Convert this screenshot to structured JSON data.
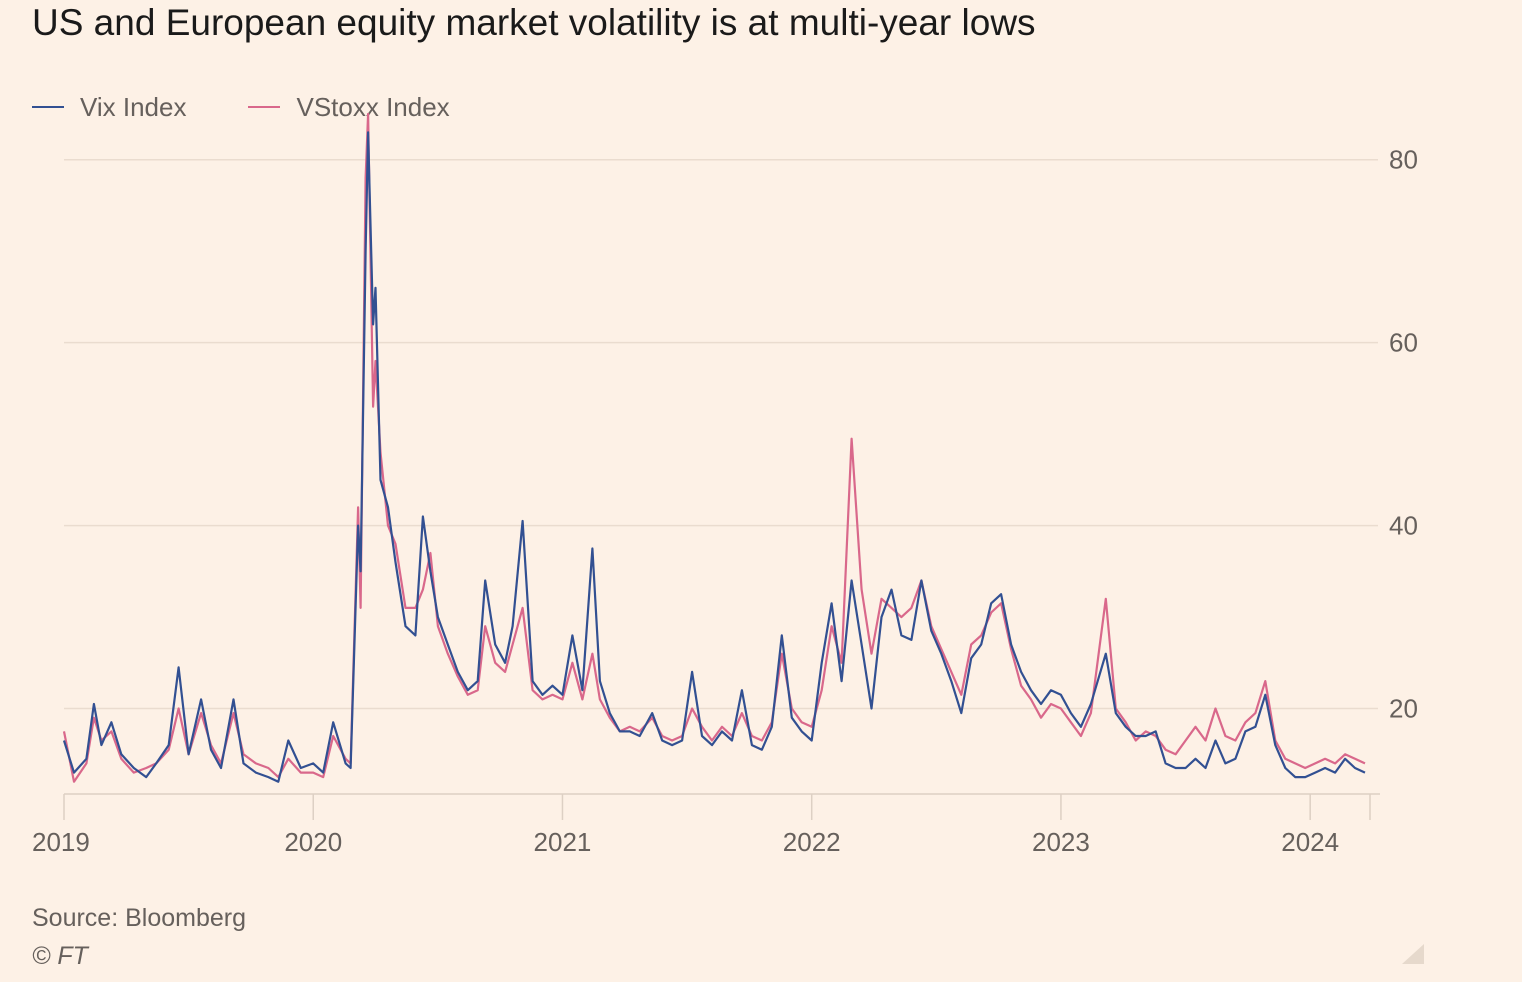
{
  "title": "US and European equity market volatility is at multi-year lows",
  "legend": [
    {
      "label": "Vix Index",
      "color": "#325092"
    },
    {
      "label": "VStoxx Index",
      "color": "#d9688b"
    }
  ],
  "source": "Source: Bloomberg",
  "credit": "© FT",
  "chart_data": {
    "type": "line",
    "title": "US and European equity market volatility is at multi-year lows",
    "xlabel": "",
    "ylabel": "",
    "xlim": [
      2019.0,
      2024.24
    ],
    "ylim": [
      10,
      85
    ],
    "x_ticks": [
      2019,
      2020,
      2021,
      2022,
      2023,
      2024
    ],
    "x_tick_labels": [
      "2019",
      "2020",
      "2021",
      "2022",
      "2023",
      "2024"
    ],
    "y_ticks": [
      20,
      40,
      60,
      80
    ],
    "y_tick_labels": [
      "20",
      "40",
      "60",
      "80"
    ],
    "grid": true,
    "legend_position": "top-left",
    "y_axis_side": "right",
    "series": [
      {
        "name": "Vix Index",
        "color": "#325092",
        "points": [
          [
            2019.0,
            16.5
          ],
          [
            2019.04,
            13.0
          ],
          [
            2019.09,
            14.5
          ],
          [
            2019.12,
            20.5
          ],
          [
            2019.15,
            16.0
          ],
          [
            2019.19,
            18.5
          ],
          [
            2019.23,
            15.0
          ],
          [
            2019.28,
            13.5
          ],
          [
            2019.33,
            12.5
          ],
          [
            2019.37,
            14.0
          ],
          [
            2019.42,
            16.0
          ],
          [
            2019.46,
            24.5
          ],
          [
            2019.5,
            15.0
          ],
          [
            2019.55,
            21.0
          ],
          [
            2019.59,
            15.5
          ],
          [
            2019.63,
            13.5
          ],
          [
            2019.68,
            21.0
          ],
          [
            2019.72,
            14.0
          ],
          [
            2019.77,
            13.0
          ],
          [
            2019.82,
            12.5
          ],
          [
            2019.86,
            12.0
          ],
          [
            2019.9,
            16.5
          ],
          [
            2019.95,
            13.5
          ],
          [
            2020.0,
            14.0
          ],
          [
            2020.04,
            13.0
          ],
          [
            2020.08,
            18.5
          ],
          [
            2020.13,
            14.0
          ],
          [
            2020.15,
            13.5
          ],
          [
            2020.18,
            40.0
          ],
          [
            2020.19,
            35.0
          ],
          [
            2020.21,
            70.0
          ],
          [
            2020.22,
            83.0
          ],
          [
            2020.24,
            62.0
          ],
          [
            2020.25,
            66.0
          ],
          [
            2020.27,
            45.0
          ],
          [
            2020.3,
            42.0
          ],
          [
            2020.33,
            36.0
          ],
          [
            2020.37,
            29.0
          ],
          [
            2020.41,
            28.0
          ],
          [
            2020.44,
            41.0
          ],
          [
            2020.47,
            35.0
          ],
          [
            2020.5,
            30.0
          ],
          [
            2020.54,
            27.0
          ],
          [
            2020.58,
            24.0
          ],
          [
            2020.62,
            22.0
          ],
          [
            2020.66,
            23.0
          ],
          [
            2020.69,
            34.0
          ],
          [
            2020.73,
            27.0
          ],
          [
            2020.77,
            25.0
          ],
          [
            2020.8,
            29.0
          ],
          [
            2020.84,
            40.5
          ],
          [
            2020.88,
            23.0
          ],
          [
            2020.92,
            21.5
          ],
          [
            2020.96,
            22.5
          ],
          [
            2021.0,
            21.5
          ],
          [
            2021.04,
            28.0
          ],
          [
            2021.08,
            22.0
          ],
          [
            2021.12,
            37.5
          ],
          [
            2021.15,
            23.0
          ],
          [
            2021.19,
            19.5
          ],
          [
            2021.23,
            17.5
          ],
          [
            2021.27,
            17.5
          ],
          [
            2021.31,
            17.0
          ],
          [
            2021.36,
            19.5
          ],
          [
            2021.4,
            16.5
          ],
          [
            2021.44,
            16.0
          ],
          [
            2021.48,
            16.5
          ],
          [
            2021.52,
            24.0
          ],
          [
            2021.56,
            17.0
          ],
          [
            2021.6,
            16.0
          ],
          [
            2021.64,
            17.5
          ],
          [
            2021.68,
            16.5
          ],
          [
            2021.72,
            22.0
          ],
          [
            2021.76,
            16.0
          ],
          [
            2021.8,
            15.5
          ],
          [
            2021.84,
            18.0
          ],
          [
            2021.88,
            28.0
          ],
          [
            2021.92,
            19.0
          ],
          [
            2021.96,
            17.5
          ],
          [
            2022.0,
            16.5
          ],
          [
            2022.04,
            25.0
          ],
          [
            2022.08,
            31.5
          ],
          [
            2022.12,
            23.0
          ],
          [
            2022.16,
            34.0
          ],
          [
            2022.2,
            27.0
          ],
          [
            2022.24,
            20.0
          ],
          [
            2022.28,
            30.0
          ],
          [
            2022.32,
            33.0
          ],
          [
            2022.36,
            28.0
          ],
          [
            2022.4,
            27.5
          ],
          [
            2022.44,
            34.0
          ],
          [
            2022.48,
            28.5
          ],
          [
            2022.52,
            26.0
          ],
          [
            2022.56,
            23.0
          ],
          [
            2022.6,
            19.5
          ],
          [
            2022.64,
            25.5
          ],
          [
            2022.68,
            27.0
          ],
          [
            2022.72,
            31.5
          ],
          [
            2022.76,
            32.5
          ],
          [
            2022.8,
            27.0
          ],
          [
            2022.84,
            24.0
          ],
          [
            2022.88,
            22.0
          ],
          [
            2022.92,
            20.5
          ],
          [
            2022.96,
            22.0
          ],
          [
            2023.0,
            21.5
          ],
          [
            2023.04,
            19.5
          ],
          [
            2023.08,
            18.0
          ],
          [
            2023.12,
            20.5
          ],
          [
            2023.18,
            26.0
          ],
          [
            2023.22,
            19.5
          ],
          [
            2023.26,
            18.0
          ],
          [
            2023.3,
            17.0
          ],
          [
            2023.34,
            17.0
          ],
          [
            2023.38,
            17.5
          ],
          [
            2023.42,
            14.0
          ],
          [
            2023.46,
            13.5
          ],
          [
            2023.5,
            13.5
          ],
          [
            2023.54,
            14.5
          ],
          [
            2023.58,
            13.5
          ],
          [
            2023.62,
            16.5
          ],
          [
            2023.66,
            14.0
          ],
          [
            2023.7,
            14.5
          ],
          [
            2023.74,
            17.5
          ],
          [
            2023.78,
            18.0
          ],
          [
            2023.82,
            21.5
          ],
          [
            2023.86,
            16.0
          ],
          [
            2023.9,
            13.5
          ],
          [
            2023.94,
            12.5
          ],
          [
            2023.98,
            12.5
          ],
          [
            2024.02,
            13.0
          ],
          [
            2024.06,
            13.5
          ],
          [
            2024.1,
            13.0
          ],
          [
            2024.14,
            14.5
          ],
          [
            2024.18,
            13.5
          ],
          [
            2024.22,
            13.0
          ]
        ]
      },
      {
        "name": "VStoxx Index",
        "color": "#d9688b",
        "points": [
          [
            2019.0,
            17.5
          ],
          [
            2019.04,
            12.0
          ],
          [
            2019.09,
            14.0
          ],
          [
            2019.12,
            19.0
          ],
          [
            2019.15,
            16.5
          ],
          [
            2019.19,
            17.5
          ],
          [
            2019.23,
            14.5
          ],
          [
            2019.28,
            13.0
          ],
          [
            2019.33,
            13.5
          ],
          [
            2019.37,
            14.0
          ],
          [
            2019.42,
            15.5
          ],
          [
            2019.46,
            20.0
          ],
          [
            2019.5,
            15.0
          ],
          [
            2019.55,
            19.5
          ],
          [
            2019.59,
            16.0
          ],
          [
            2019.63,
            14.0
          ],
          [
            2019.68,
            19.5
          ],
          [
            2019.72,
            15.0
          ],
          [
            2019.77,
            14.0
          ],
          [
            2019.82,
            13.5
          ],
          [
            2019.86,
            12.5
          ],
          [
            2019.9,
            14.5
          ],
          [
            2019.95,
            13.0
          ],
          [
            2020.0,
            13.0
          ],
          [
            2020.04,
            12.5
          ],
          [
            2020.08,
            17.0
          ],
          [
            2020.13,
            14.5
          ],
          [
            2020.15,
            14.0
          ],
          [
            2020.18,
            42.0
          ],
          [
            2020.19,
            31.0
          ],
          [
            2020.21,
            78.0
          ],
          [
            2020.22,
            85.0
          ],
          [
            2020.24,
            53.0
          ],
          [
            2020.25,
            58.0
          ],
          [
            2020.27,
            48.0
          ],
          [
            2020.3,
            40.0
          ],
          [
            2020.33,
            38.0
          ],
          [
            2020.37,
            31.0
          ],
          [
            2020.41,
            31.0
          ],
          [
            2020.44,
            33.0
          ],
          [
            2020.47,
            37.0
          ],
          [
            2020.5,
            29.0
          ],
          [
            2020.54,
            26.0
          ],
          [
            2020.58,
            23.5
          ],
          [
            2020.62,
            21.5
          ],
          [
            2020.66,
            22.0
          ],
          [
            2020.69,
            29.0
          ],
          [
            2020.73,
            25.0
          ],
          [
            2020.77,
            24.0
          ],
          [
            2020.8,
            27.0
          ],
          [
            2020.84,
            31.0
          ],
          [
            2020.88,
            22.0
          ],
          [
            2020.92,
            21.0
          ],
          [
            2020.96,
            21.5
          ],
          [
            2021.0,
            21.0
          ],
          [
            2021.04,
            25.0
          ],
          [
            2021.08,
            21.0
          ],
          [
            2021.12,
            26.0
          ],
          [
            2021.15,
            21.0
          ],
          [
            2021.19,
            19.0
          ],
          [
            2021.23,
            17.5
          ],
          [
            2021.27,
            18.0
          ],
          [
            2021.31,
            17.5
          ],
          [
            2021.36,
            19.0
          ],
          [
            2021.4,
            17.0
          ],
          [
            2021.44,
            16.5
          ],
          [
            2021.48,
            17.0
          ],
          [
            2021.52,
            20.0
          ],
          [
            2021.56,
            18.0
          ],
          [
            2021.6,
            16.5
          ],
          [
            2021.64,
            18.0
          ],
          [
            2021.68,
            17.0
          ],
          [
            2021.72,
            19.5
          ],
          [
            2021.76,
            17.0
          ],
          [
            2021.8,
            16.5
          ],
          [
            2021.84,
            18.5
          ],
          [
            2021.88,
            26.0
          ],
          [
            2021.92,
            20.0
          ],
          [
            2021.96,
            18.5
          ],
          [
            2022.0,
            18.0
          ],
          [
            2022.04,
            22.0
          ],
          [
            2022.08,
            29.0
          ],
          [
            2022.12,
            25.0
          ],
          [
            2022.16,
            49.5
          ],
          [
            2022.2,
            33.0
          ],
          [
            2022.24,
            26.0
          ],
          [
            2022.28,
            32.0
          ],
          [
            2022.32,
            31.0
          ],
          [
            2022.36,
            30.0
          ],
          [
            2022.4,
            31.0
          ],
          [
            2022.44,
            34.0
          ],
          [
            2022.48,
            29.0
          ],
          [
            2022.52,
            26.5
          ],
          [
            2022.56,
            24.0
          ],
          [
            2022.6,
            21.5
          ],
          [
            2022.64,
            27.0
          ],
          [
            2022.68,
            28.0
          ],
          [
            2022.72,
            30.5
          ],
          [
            2022.76,
            31.5
          ],
          [
            2022.8,
            26.5
          ],
          [
            2022.84,
            22.5
          ],
          [
            2022.88,
            21.0
          ],
          [
            2022.92,
            19.0
          ],
          [
            2022.96,
            20.5
          ],
          [
            2023.0,
            20.0
          ],
          [
            2023.04,
            18.5
          ],
          [
            2023.08,
            17.0
          ],
          [
            2023.12,
            19.5
          ],
          [
            2023.18,
            32.0
          ],
          [
            2023.22,
            20.0
          ],
          [
            2023.26,
            18.5
          ],
          [
            2023.3,
            16.5
          ],
          [
            2023.34,
            17.5
          ],
          [
            2023.38,
            17.0
          ],
          [
            2023.42,
            15.5
          ],
          [
            2023.46,
            15.0
          ],
          [
            2023.5,
            16.5
          ],
          [
            2023.54,
            18.0
          ],
          [
            2023.58,
            16.5
          ],
          [
            2023.62,
            20.0
          ],
          [
            2023.66,
            17.0
          ],
          [
            2023.7,
            16.5
          ],
          [
            2023.74,
            18.5
          ],
          [
            2023.78,
            19.5
          ],
          [
            2023.82,
            23.0
          ],
          [
            2023.86,
            16.5
          ],
          [
            2023.9,
            14.5
          ],
          [
            2023.94,
            14.0
          ],
          [
            2023.98,
            13.5
          ],
          [
            2024.02,
            14.0
          ],
          [
            2024.06,
            14.5
          ],
          [
            2024.1,
            14.0
          ],
          [
            2024.14,
            15.0
          ],
          [
            2024.18,
            14.5
          ],
          [
            2024.22,
            14.0
          ]
        ]
      }
    ]
  }
}
